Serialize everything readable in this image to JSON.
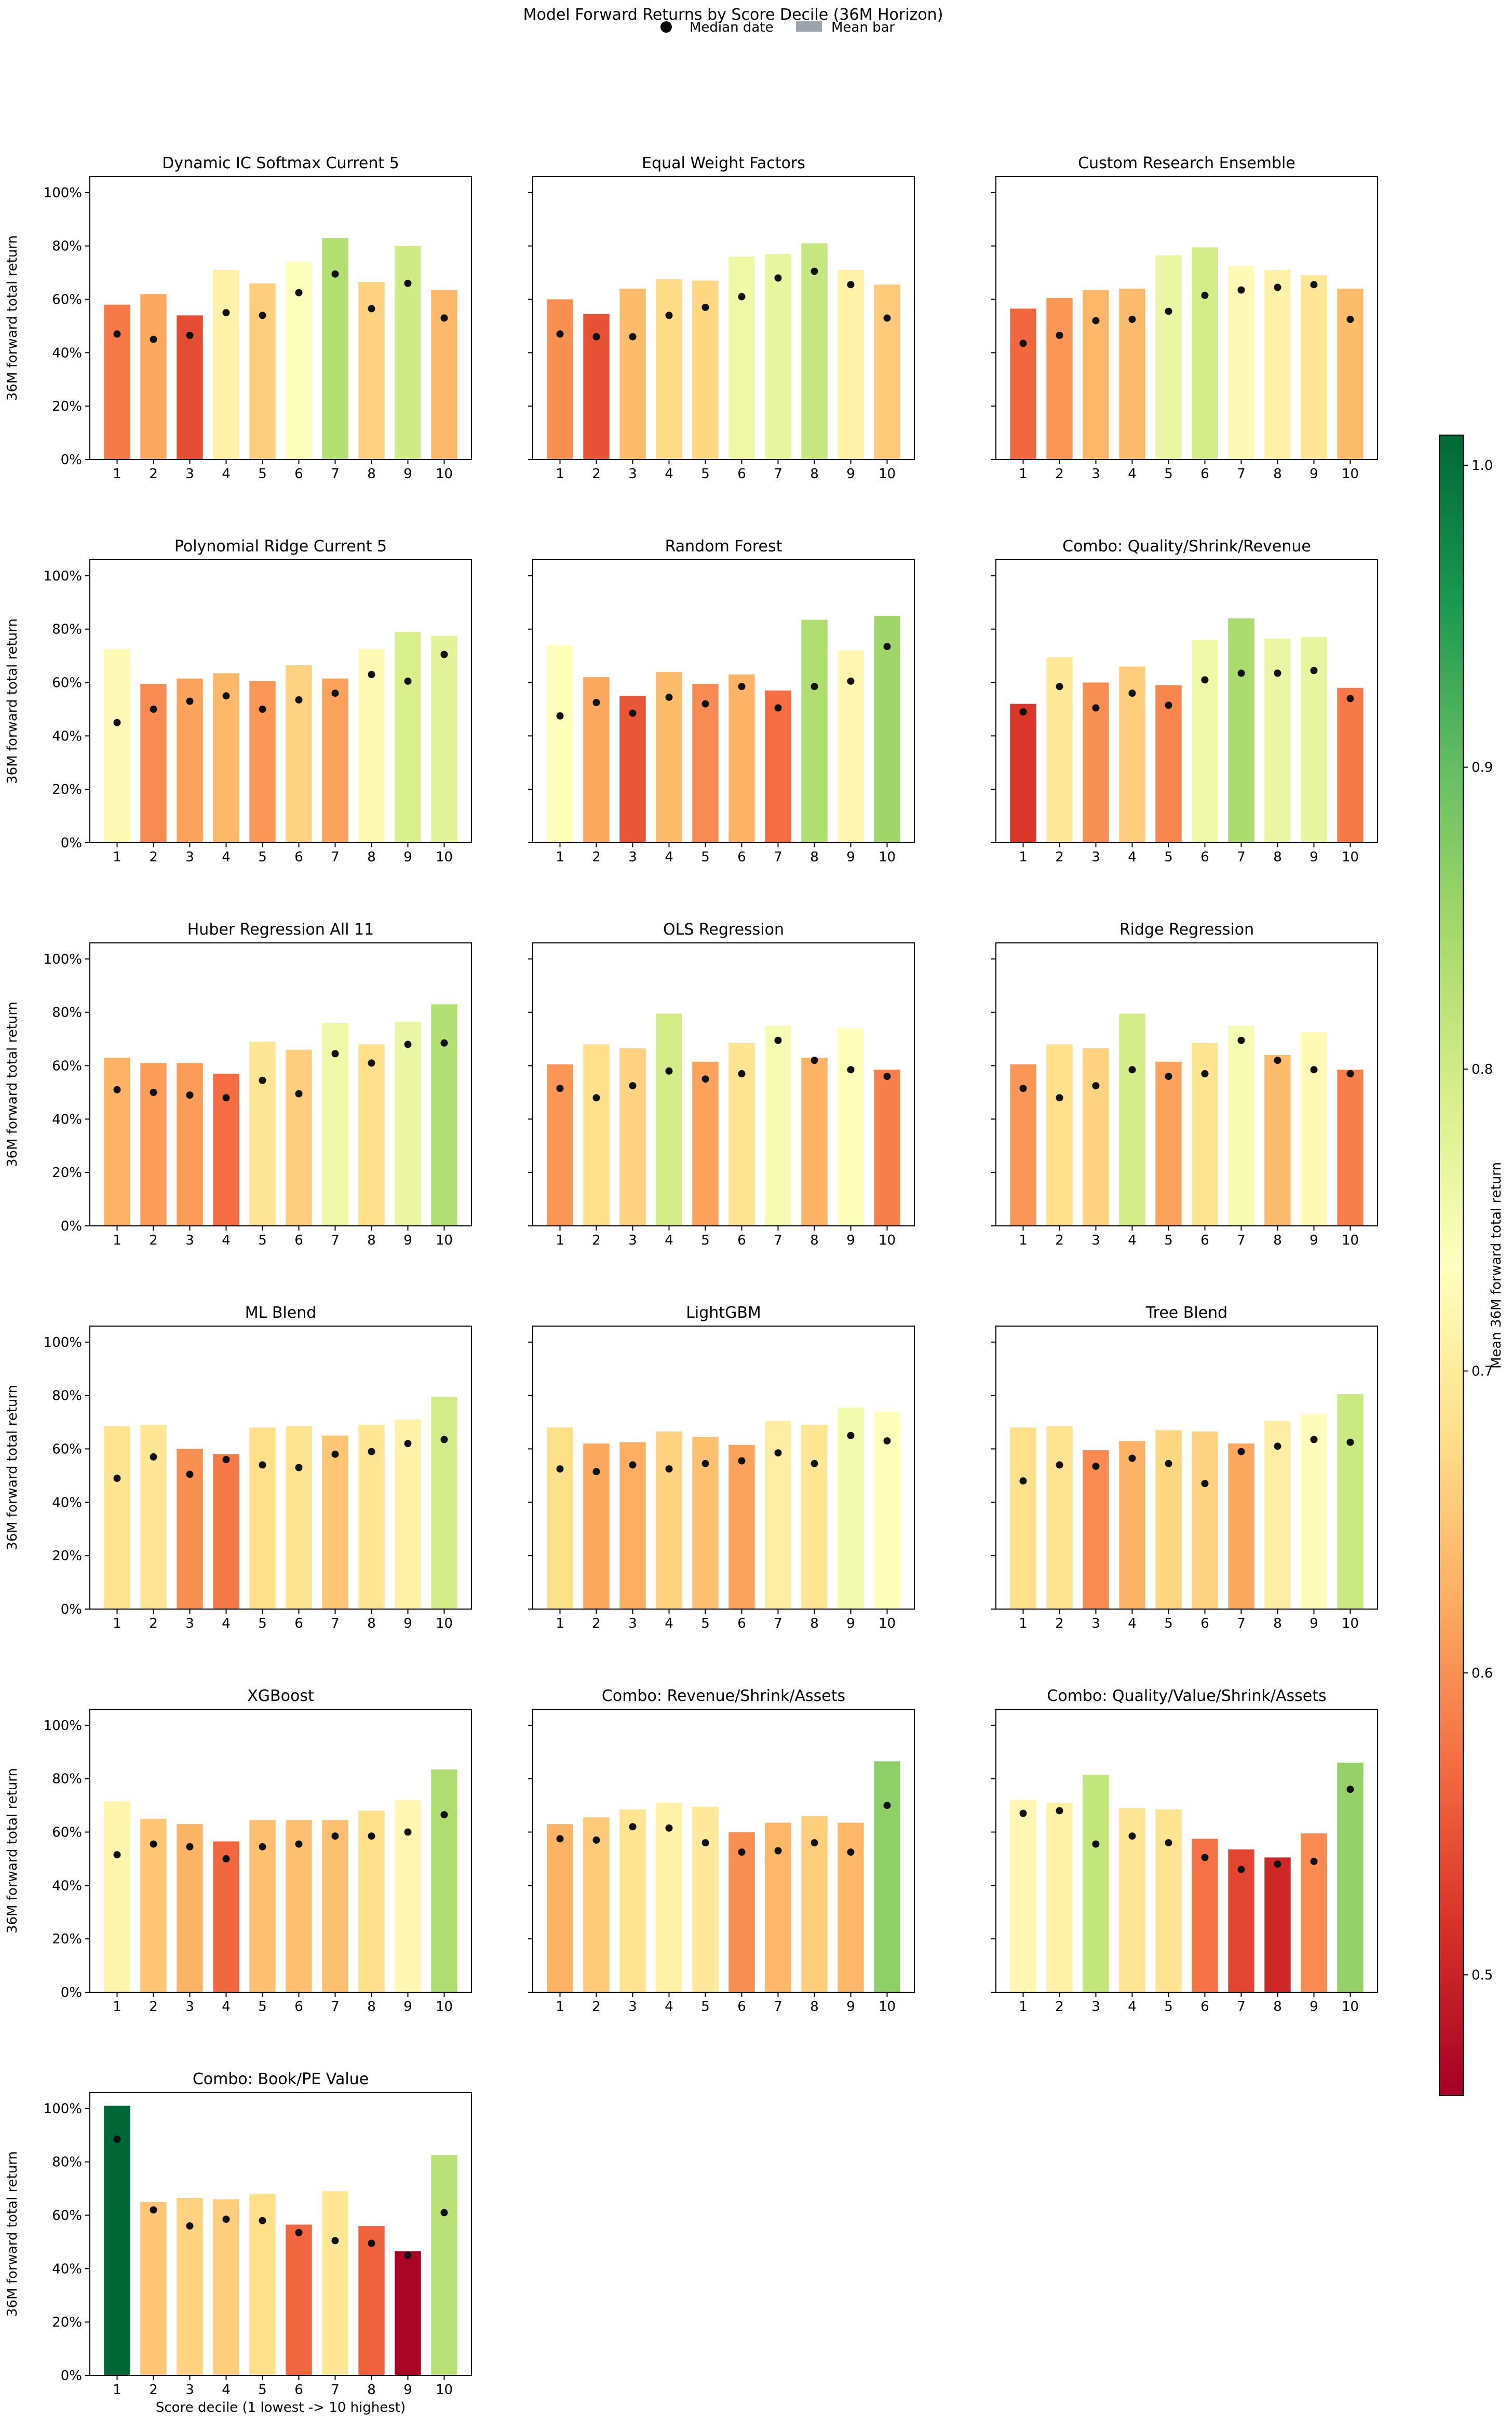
{
  "figure": {
    "title": "Model Forward Returns by Score Decile (36M Horizon)",
    "legend": {
      "median_label": "Median date",
      "mean_label": "Mean bar",
      "median_color": "#000000",
      "mean_color": "#9ca3af"
    },
    "colorbar": {
      "label": "Mean 36M forward total return",
      "min": 0.46,
      "max": 1.01,
      "ticks": [
        "0.5",
        "0.6",
        "0.7",
        "0.8",
        "0.9",
        "1.0"
      ],
      "tick_values": [
        0.5,
        0.6,
        0.7,
        0.8,
        0.9,
        1.0
      ],
      "colormap": "RdYlGn"
    }
  },
  "chart_data": [
    {
      "type": "bar",
      "title": "Dynamic IC Softmax Current 5",
      "categories": [
        "1",
        "2",
        "3",
        "4",
        "5",
        "6",
        "7",
        "8",
        "9",
        "10"
      ],
      "series": [
        {
          "name": "Mean bar",
          "values": [
            0.58,
            0.62,
            0.54,
            0.71,
            0.66,
            0.74,
            0.83,
            0.665,
            0.8,
            0.635
          ]
        },
        {
          "name": "Median date",
          "values": [
            0.47,
            0.45,
            0.465,
            0.55,
            0.54,
            0.625,
            0.695,
            0.565,
            0.66,
            0.53
          ]
        }
      ],
      "ylabel": "36M forward total return",
      "ylim": [
        0,
        1.06
      ],
      "yticks": [
        "0%",
        "20%",
        "40%",
        "60%",
        "80%",
        "100%"
      ]
    },
    {
      "type": "bar",
      "title": "Equal Weight Factors",
      "categories": [
        "1",
        "2",
        "3",
        "4",
        "5",
        "6",
        "7",
        "8",
        "9",
        "10"
      ],
      "series": [
        {
          "name": "Mean bar",
          "values": [
            0.6,
            0.545,
            0.64,
            0.675,
            0.67,
            0.76,
            0.77,
            0.81,
            0.71,
            0.655
          ]
        },
        {
          "name": "Median date",
          "values": [
            0.47,
            0.46,
            0.46,
            0.54,
            0.57,
            0.61,
            0.68,
            0.705,
            0.655,
            0.53
          ]
        }
      ],
      "ylim": [
        0,
        1.06
      ]
    },
    {
      "type": "bar",
      "title": "Custom Research Ensemble",
      "categories": [
        "1",
        "2",
        "3",
        "4",
        "5",
        "6",
        "7",
        "8",
        "9",
        "10"
      ],
      "series": [
        {
          "name": "Mean bar",
          "values": [
            0.565,
            0.605,
            0.635,
            0.64,
            0.765,
            0.795,
            0.725,
            0.71,
            0.69,
            0.64
          ]
        },
        {
          "name": "Median date",
          "values": [
            0.435,
            0.465,
            0.52,
            0.525,
            0.555,
            0.615,
            0.635,
            0.645,
            0.655,
            0.525
          ]
        }
      ],
      "ylim": [
        0,
        1.06
      ]
    },
    {
      "type": "bar",
      "title": "Polynomial Ridge Current 5",
      "categories": [
        "1",
        "2",
        "3",
        "4",
        "5",
        "6",
        "7",
        "8",
        "9",
        "10"
      ],
      "series": [
        {
          "name": "Mean bar",
          "values": [
            0.725,
            0.595,
            0.615,
            0.635,
            0.605,
            0.665,
            0.615,
            0.725,
            0.79,
            0.775
          ]
        },
        {
          "name": "Median date",
          "values": [
            0.45,
            0.5,
            0.53,
            0.55,
            0.5,
            0.535,
            0.56,
            0.63,
            0.605,
            0.705
          ]
        }
      ],
      "ylabel": "36M forward total return",
      "ylim": [
        0,
        1.06
      ],
      "yticks": [
        "0%",
        "20%",
        "40%",
        "60%",
        "80%",
        "100%"
      ]
    },
    {
      "type": "bar",
      "title": "Random Forest",
      "categories": [
        "1",
        "2",
        "3",
        "4",
        "5",
        "6",
        "7",
        "8",
        "9",
        "10"
      ],
      "series": [
        {
          "name": "Mean bar",
          "values": [
            0.74,
            0.62,
            0.55,
            0.64,
            0.595,
            0.63,
            0.57,
            0.835,
            0.72,
            0.85
          ]
        },
        {
          "name": "Median date",
          "values": [
            0.475,
            0.525,
            0.485,
            0.545,
            0.52,
            0.585,
            0.505,
            0.585,
            0.605,
            0.735
          ]
        }
      ],
      "ylim": [
        0,
        1.06
      ]
    },
    {
      "type": "bar",
      "title": "Combo: Quality/Shrink/Revenue",
      "categories": [
        "1",
        "2",
        "3",
        "4",
        "5",
        "6",
        "7",
        "8",
        "9",
        "10"
      ],
      "series": [
        {
          "name": "Mean bar",
          "values": [
            0.52,
            0.695,
            0.6,
            0.66,
            0.59,
            0.76,
            0.84,
            0.765,
            0.77,
            0.58
          ]
        },
        {
          "name": "Median date",
          "values": [
            0.49,
            0.585,
            0.505,
            0.56,
            0.515,
            0.61,
            0.635,
            0.635,
            0.645,
            0.54
          ]
        }
      ],
      "ylim": [
        0,
        1.06
      ]
    },
    {
      "type": "bar",
      "title": "Huber Regression All 11",
      "categories": [
        "1",
        "2",
        "3",
        "4",
        "5",
        "6",
        "7",
        "8",
        "9",
        "10"
      ],
      "series": [
        {
          "name": "Mean bar",
          "values": [
            0.63,
            0.61,
            0.61,
            0.57,
            0.69,
            0.66,
            0.76,
            0.68,
            0.765,
            0.83
          ]
        },
        {
          "name": "Median date",
          "values": [
            0.51,
            0.5,
            0.49,
            0.48,
            0.545,
            0.495,
            0.645,
            0.61,
            0.68,
            0.685
          ]
        }
      ],
      "ylabel": "36M forward total return",
      "ylim": [
        0,
        1.06
      ],
      "yticks": [
        "0%",
        "20%",
        "40%",
        "60%",
        "80%",
        "100%"
      ]
    },
    {
      "type": "bar",
      "title": "OLS Regression",
      "categories": [
        "1",
        "2",
        "3",
        "4",
        "5",
        "6",
        "7",
        "8",
        "9",
        "10"
      ],
      "series": [
        {
          "name": "Mean bar",
          "values": [
            0.605,
            0.68,
            0.665,
            0.795,
            0.615,
            0.685,
            0.75,
            0.63,
            0.74,
            0.585
          ]
        },
        {
          "name": "Median date",
          "values": [
            0.515,
            0.48,
            0.525,
            0.58,
            0.55,
            0.57,
            0.695,
            0.62,
            0.585,
            0.56
          ]
        }
      ],
      "ylim": [
        0,
        1.06
      ]
    },
    {
      "type": "bar",
      "title": "Ridge Regression",
      "categories": [
        "1",
        "2",
        "3",
        "4",
        "5",
        "6",
        "7",
        "8",
        "9",
        "10"
      ],
      "series": [
        {
          "name": "Mean bar",
          "values": [
            0.605,
            0.68,
            0.665,
            0.795,
            0.615,
            0.685,
            0.75,
            0.64,
            0.725,
            0.585
          ]
        },
        {
          "name": "Median date",
          "values": [
            0.515,
            0.48,
            0.525,
            0.585,
            0.56,
            0.57,
            0.695,
            0.62,
            0.585,
            0.57
          ]
        }
      ],
      "ylim": [
        0,
        1.06
      ]
    },
    {
      "type": "bar",
      "title": "ML Blend",
      "categories": [
        "1",
        "2",
        "3",
        "4",
        "5",
        "6",
        "7",
        "8",
        "9",
        "10"
      ],
      "series": [
        {
          "name": "Mean bar",
          "values": [
            0.685,
            0.69,
            0.6,
            0.58,
            0.68,
            0.685,
            0.65,
            0.69,
            0.71,
            0.795
          ]
        },
        {
          "name": "Median date",
          "values": [
            0.49,
            0.57,
            0.505,
            0.56,
            0.54,
            0.53,
            0.58,
            0.59,
            0.62,
            0.635
          ]
        }
      ],
      "ylabel": "36M forward total return",
      "ylim": [
        0,
        1.06
      ],
      "yticks": [
        "0%",
        "20%",
        "40%",
        "60%",
        "80%",
        "100%"
      ]
    },
    {
      "type": "bar",
      "title": "LightGBM",
      "categories": [
        "1",
        "2",
        "3",
        "4",
        "5",
        "6",
        "7",
        "8",
        "9",
        "10"
      ],
      "series": [
        {
          "name": "Mean bar",
          "values": [
            0.68,
            0.62,
            0.625,
            0.665,
            0.645,
            0.615,
            0.705,
            0.69,
            0.755,
            0.74
          ]
        },
        {
          "name": "Median date",
          "values": [
            0.525,
            0.515,
            0.54,
            0.525,
            0.545,
            0.555,
            0.585,
            0.545,
            0.65,
            0.63
          ]
        }
      ],
      "ylim": [
        0,
        1.06
      ]
    },
    {
      "type": "bar",
      "title": "Tree Blend",
      "categories": [
        "1",
        "2",
        "3",
        "4",
        "5",
        "6",
        "7",
        "8",
        "9",
        "10"
      ],
      "series": [
        {
          "name": "Mean bar",
          "values": [
            0.68,
            0.685,
            0.595,
            0.63,
            0.67,
            0.665,
            0.62,
            0.705,
            0.73,
            0.805
          ]
        },
        {
          "name": "Median date",
          "values": [
            0.48,
            0.54,
            0.535,
            0.565,
            0.545,
            0.47,
            0.59,
            0.61,
            0.635,
            0.625
          ]
        }
      ],
      "ylim": [
        0,
        1.06
      ]
    },
    {
      "type": "bar",
      "title": "XGBoost",
      "categories": [
        "1",
        "2",
        "3",
        "4",
        "5",
        "6",
        "7",
        "8",
        "9",
        "10"
      ],
      "series": [
        {
          "name": "Mean bar",
          "values": [
            0.715,
            0.65,
            0.63,
            0.565,
            0.645,
            0.645,
            0.645,
            0.68,
            0.72,
            0.835
          ]
        },
        {
          "name": "Median date",
          "values": [
            0.515,
            0.555,
            0.545,
            0.5,
            0.545,
            0.555,
            0.585,
            0.585,
            0.6,
            0.665
          ]
        }
      ],
      "ylabel": "36M forward total return",
      "ylim": [
        0,
        1.06
      ],
      "yticks": [
        "0%",
        "20%",
        "40%",
        "60%",
        "80%",
        "100%"
      ]
    },
    {
      "type": "bar",
      "title": "Combo: Revenue/Shrink/Assets",
      "categories": [
        "1",
        "2",
        "3",
        "4",
        "5",
        "6",
        "7",
        "8",
        "9",
        "10"
      ],
      "series": [
        {
          "name": "Mean bar",
          "values": [
            0.63,
            0.655,
            0.685,
            0.71,
            0.695,
            0.6,
            0.635,
            0.66,
            0.635,
            0.865
          ]
        },
        {
          "name": "Median date",
          "values": [
            0.575,
            0.57,
            0.62,
            0.615,
            0.56,
            0.525,
            0.53,
            0.56,
            0.525,
            0.7
          ]
        }
      ],
      "ylim": [
        0,
        1.06
      ]
    },
    {
      "type": "bar",
      "title": "Combo: Quality/Value/Shrink/Assets",
      "categories": [
        "1",
        "2",
        "3",
        "4",
        "5",
        "6",
        "7",
        "8",
        "9",
        "10"
      ],
      "series": [
        {
          "name": "Mean bar",
          "values": [
            0.72,
            0.71,
            0.815,
            0.69,
            0.685,
            0.575,
            0.535,
            0.505,
            0.595,
            0.86
          ]
        },
        {
          "name": "Median date",
          "values": [
            0.67,
            0.68,
            0.555,
            0.585,
            0.56,
            0.505,
            0.46,
            0.48,
            0.49,
            0.76
          ]
        }
      ],
      "ylim": [
        0,
        1.06
      ]
    },
    {
      "type": "bar",
      "title": "Combo: Book/PE Value",
      "categories": [
        "1",
        "2",
        "3",
        "4",
        "5",
        "6",
        "7",
        "8",
        "9",
        "10"
      ],
      "series": [
        {
          "name": "Mean bar",
          "values": [
            1.01,
            0.65,
            0.665,
            0.66,
            0.68,
            0.565,
            0.69,
            0.56,
            0.465,
            0.825
          ]
        },
        {
          "name": "Median date",
          "values": [
            0.885,
            0.62,
            0.56,
            0.585,
            0.58,
            0.535,
            0.505,
            0.495,
            0.45,
            0.61
          ]
        }
      ],
      "xlabel": "Score decile (1 lowest -> 10 highest)",
      "ylabel": "36M forward total return",
      "ylim": [
        0,
        1.06
      ],
      "yticks": [
        "0%",
        "20%",
        "40%",
        "60%",
        "80%",
        "100%"
      ]
    }
  ]
}
